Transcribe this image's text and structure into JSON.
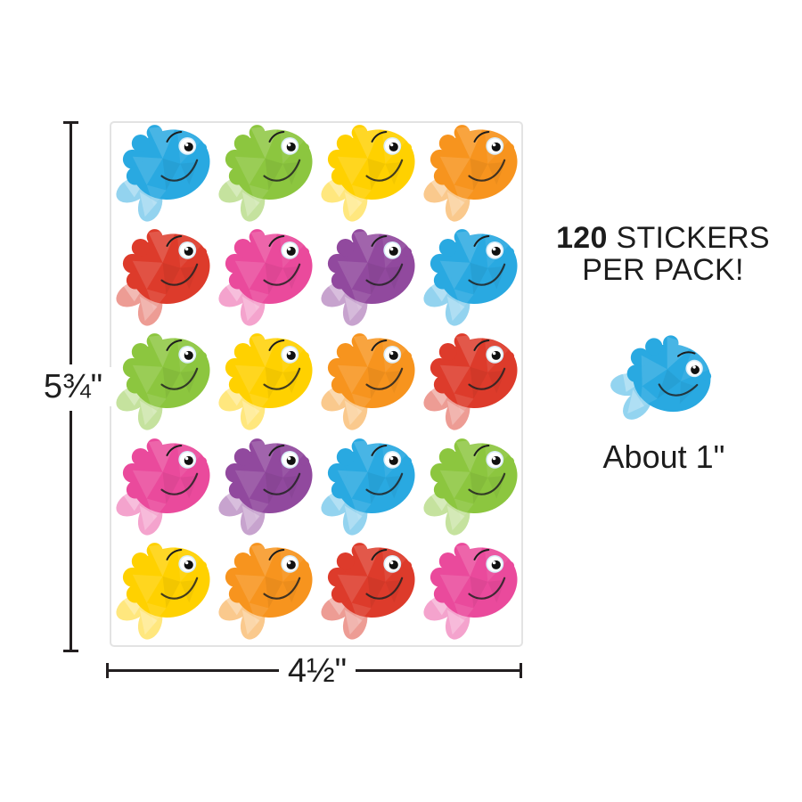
{
  "page": {
    "background": "#ffffff"
  },
  "sheet": {
    "border_color": "#e3e3e3",
    "columns": 4,
    "rows_count": 5,
    "rows": [
      [
        "blue",
        "green",
        "yellow",
        "orange"
      ],
      [
        "red",
        "pink",
        "purple",
        "blue"
      ],
      [
        "green",
        "yellow",
        "orange",
        "red"
      ],
      [
        "pink",
        "purple",
        "blue",
        "green"
      ],
      [
        "yellow",
        "orange",
        "red",
        "pink"
      ]
    ]
  },
  "palette": {
    "blue": "#29A9E1",
    "green": "#8CC63F",
    "yellow": "#FFD100",
    "orange": "#F7941E",
    "red": "#DD3B2B",
    "pink": "#EA4A9C",
    "purple": "#91499E"
  },
  "dimensions": {
    "height_label": "5¾\"",
    "width_label": "4½\"",
    "line_color": "#231F20"
  },
  "promo": {
    "count": "120",
    "line1_rest": " STICKERS",
    "line2": "PER PACK!"
  },
  "size_note": {
    "label": "About 1\"",
    "fish_color": "blue"
  }
}
